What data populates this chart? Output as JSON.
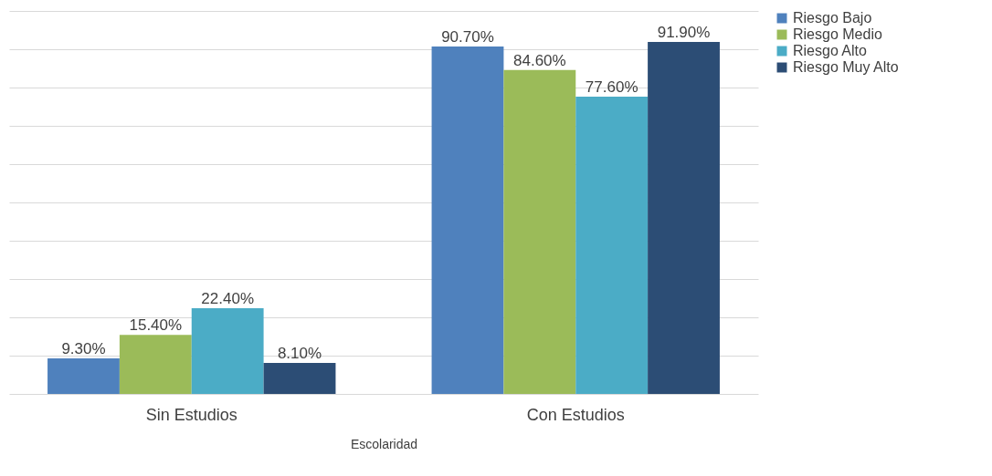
{
  "chart_data": {
    "type": "bar",
    "xlabel": "Escolaridad",
    "categories": [
      "Sin Estudios",
      "Con Estudios"
    ],
    "series": [
      {
        "name": "Riesgo Bajo",
        "color": "#4f81bd",
        "values": [
          9.3,
          90.7
        ],
        "value_labels": [
          "9.30%",
          "90.70%"
        ]
      },
      {
        "name": "Riesgo Medio",
        "color": "#9bbb59",
        "values": [
          15.4,
          84.6
        ],
        "value_labels": [
          "15.40%",
          "84.60%"
        ]
      },
      {
        "name": "Riesgo Alto",
        "color": "#4bacc6",
        "values": [
          22.4,
          77.6
        ],
        "value_labels": [
          "22.40%",
          "77.60%"
        ]
      },
      {
        "name": "Riesgo Muy Alto",
        "color": "#2c4d75",
        "values": [
          8.1,
          91.9
        ],
        "value_labels": [
          "8.10%",
          "91.90%"
        ]
      }
    ],
    "ylim": [
      0,
      100
    ],
    "yticks": [
      {
        "value": 0,
        "label": null
      },
      {
        "value": 10,
        "label": null
      },
      {
        "value": 20,
        "label": null
      },
      {
        "value": 30,
        "label": null
      },
      {
        "value": 40,
        "label": null
      },
      {
        "value": 50,
        "label": null
      },
      {
        "value": 60,
        "label": null
      },
      {
        "value": 70,
        "label": null
      },
      {
        "value": 80,
        "label": null
      },
      {
        "value": 90,
        "label": null
      },
      {
        "value": 100,
        "label": null
      }
    ],
    "tick_labels": "x",
    "grid": "y",
    "legend": "right"
  }
}
